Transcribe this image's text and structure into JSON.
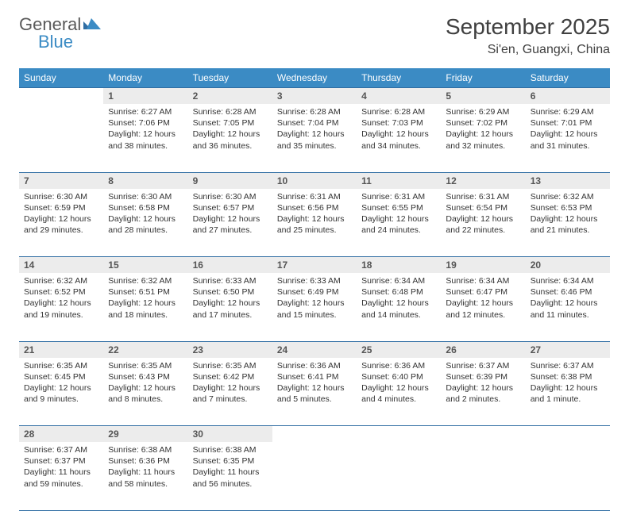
{
  "logo": {
    "main": "General",
    "sub": "Blue"
  },
  "title": "September 2025",
  "location": "Si'en, Guangxi, China",
  "headers": [
    "Sunday",
    "Monday",
    "Tuesday",
    "Wednesday",
    "Thursday",
    "Friday",
    "Saturday"
  ],
  "colors": {
    "header_bg": "#3b8bc4",
    "header_text": "#ffffff",
    "daynum_bg": "#ececec",
    "border": "#2f6da3",
    "logo_gray": "#5a5a5a",
    "logo_blue": "#3b8bc4"
  },
  "weeks": [
    {
      "days": [
        {
          "n": "",
          "sunrise": "",
          "sunset": "",
          "daylight": ""
        },
        {
          "n": "1",
          "sunrise": "Sunrise: 6:27 AM",
          "sunset": "Sunset: 7:06 PM",
          "daylight": "Daylight: 12 hours and 38 minutes."
        },
        {
          "n": "2",
          "sunrise": "Sunrise: 6:28 AM",
          "sunset": "Sunset: 7:05 PM",
          "daylight": "Daylight: 12 hours and 36 minutes."
        },
        {
          "n": "3",
          "sunrise": "Sunrise: 6:28 AM",
          "sunset": "Sunset: 7:04 PM",
          "daylight": "Daylight: 12 hours and 35 minutes."
        },
        {
          "n": "4",
          "sunrise": "Sunrise: 6:28 AM",
          "sunset": "Sunset: 7:03 PM",
          "daylight": "Daylight: 12 hours and 34 minutes."
        },
        {
          "n": "5",
          "sunrise": "Sunrise: 6:29 AM",
          "sunset": "Sunset: 7:02 PM",
          "daylight": "Daylight: 12 hours and 32 minutes."
        },
        {
          "n": "6",
          "sunrise": "Sunrise: 6:29 AM",
          "sunset": "Sunset: 7:01 PM",
          "daylight": "Daylight: 12 hours and 31 minutes."
        }
      ]
    },
    {
      "days": [
        {
          "n": "7",
          "sunrise": "Sunrise: 6:30 AM",
          "sunset": "Sunset: 6:59 PM",
          "daylight": "Daylight: 12 hours and 29 minutes."
        },
        {
          "n": "8",
          "sunrise": "Sunrise: 6:30 AM",
          "sunset": "Sunset: 6:58 PM",
          "daylight": "Daylight: 12 hours and 28 minutes."
        },
        {
          "n": "9",
          "sunrise": "Sunrise: 6:30 AM",
          "sunset": "Sunset: 6:57 PM",
          "daylight": "Daylight: 12 hours and 27 minutes."
        },
        {
          "n": "10",
          "sunrise": "Sunrise: 6:31 AM",
          "sunset": "Sunset: 6:56 PM",
          "daylight": "Daylight: 12 hours and 25 minutes."
        },
        {
          "n": "11",
          "sunrise": "Sunrise: 6:31 AM",
          "sunset": "Sunset: 6:55 PM",
          "daylight": "Daylight: 12 hours and 24 minutes."
        },
        {
          "n": "12",
          "sunrise": "Sunrise: 6:31 AM",
          "sunset": "Sunset: 6:54 PM",
          "daylight": "Daylight: 12 hours and 22 minutes."
        },
        {
          "n": "13",
          "sunrise": "Sunrise: 6:32 AM",
          "sunset": "Sunset: 6:53 PM",
          "daylight": "Daylight: 12 hours and 21 minutes."
        }
      ]
    },
    {
      "days": [
        {
          "n": "14",
          "sunrise": "Sunrise: 6:32 AM",
          "sunset": "Sunset: 6:52 PM",
          "daylight": "Daylight: 12 hours and 19 minutes."
        },
        {
          "n": "15",
          "sunrise": "Sunrise: 6:32 AM",
          "sunset": "Sunset: 6:51 PM",
          "daylight": "Daylight: 12 hours and 18 minutes."
        },
        {
          "n": "16",
          "sunrise": "Sunrise: 6:33 AM",
          "sunset": "Sunset: 6:50 PM",
          "daylight": "Daylight: 12 hours and 17 minutes."
        },
        {
          "n": "17",
          "sunrise": "Sunrise: 6:33 AM",
          "sunset": "Sunset: 6:49 PM",
          "daylight": "Daylight: 12 hours and 15 minutes."
        },
        {
          "n": "18",
          "sunrise": "Sunrise: 6:34 AM",
          "sunset": "Sunset: 6:48 PM",
          "daylight": "Daylight: 12 hours and 14 minutes."
        },
        {
          "n": "19",
          "sunrise": "Sunrise: 6:34 AM",
          "sunset": "Sunset: 6:47 PM",
          "daylight": "Daylight: 12 hours and 12 minutes."
        },
        {
          "n": "20",
          "sunrise": "Sunrise: 6:34 AM",
          "sunset": "Sunset: 6:46 PM",
          "daylight": "Daylight: 12 hours and 11 minutes."
        }
      ]
    },
    {
      "days": [
        {
          "n": "21",
          "sunrise": "Sunrise: 6:35 AM",
          "sunset": "Sunset: 6:45 PM",
          "daylight": "Daylight: 12 hours and 9 minutes."
        },
        {
          "n": "22",
          "sunrise": "Sunrise: 6:35 AM",
          "sunset": "Sunset: 6:43 PM",
          "daylight": "Daylight: 12 hours and 8 minutes."
        },
        {
          "n": "23",
          "sunrise": "Sunrise: 6:35 AM",
          "sunset": "Sunset: 6:42 PM",
          "daylight": "Daylight: 12 hours and 7 minutes."
        },
        {
          "n": "24",
          "sunrise": "Sunrise: 6:36 AM",
          "sunset": "Sunset: 6:41 PM",
          "daylight": "Daylight: 12 hours and 5 minutes."
        },
        {
          "n": "25",
          "sunrise": "Sunrise: 6:36 AM",
          "sunset": "Sunset: 6:40 PM",
          "daylight": "Daylight: 12 hours and 4 minutes."
        },
        {
          "n": "26",
          "sunrise": "Sunrise: 6:37 AM",
          "sunset": "Sunset: 6:39 PM",
          "daylight": "Daylight: 12 hours and 2 minutes."
        },
        {
          "n": "27",
          "sunrise": "Sunrise: 6:37 AM",
          "sunset": "Sunset: 6:38 PM",
          "daylight": "Daylight: 12 hours and 1 minute."
        }
      ]
    },
    {
      "days": [
        {
          "n": "28",
          "sunrise": "Sunrise: 6:37 AM",
          "sunset": "Sunset: 6:37 PM",
          "daylight": "Daylight: 11 hours and 59 minutes."
        },
        {
          "n": "29",
          "sunrise": "Sunrise: 6:38 AM",
          "sunset": "Sunset: 6:36 PM",
          "daylight": "Daylight: 11 hours and 58 minutes."
        },
        {
          "n": "30",
          "sunrise": "Sunrise: 6:38 AM",
          "sunset": "Sunset: 6:35 PM",
          "daylight": "Daylight: 11 hours and 56 minutes."
        },
        {
          "n": "",
          "sunrise": "",
          "sunset": "",
          "daylight": ""
        },
        {
          "n": "",
          "sunrise": "",
          "sunset": "",
          "daylight": ""
        },
        {
          "n": "",
          "sunrise": "",
          "sunset": "",
          "daylight": ""
        },
        {
          "n": "",
          "sunrise": "",
          "sunset": "",
          "daylight": ""
        }
      ]
    }
  ]
}
